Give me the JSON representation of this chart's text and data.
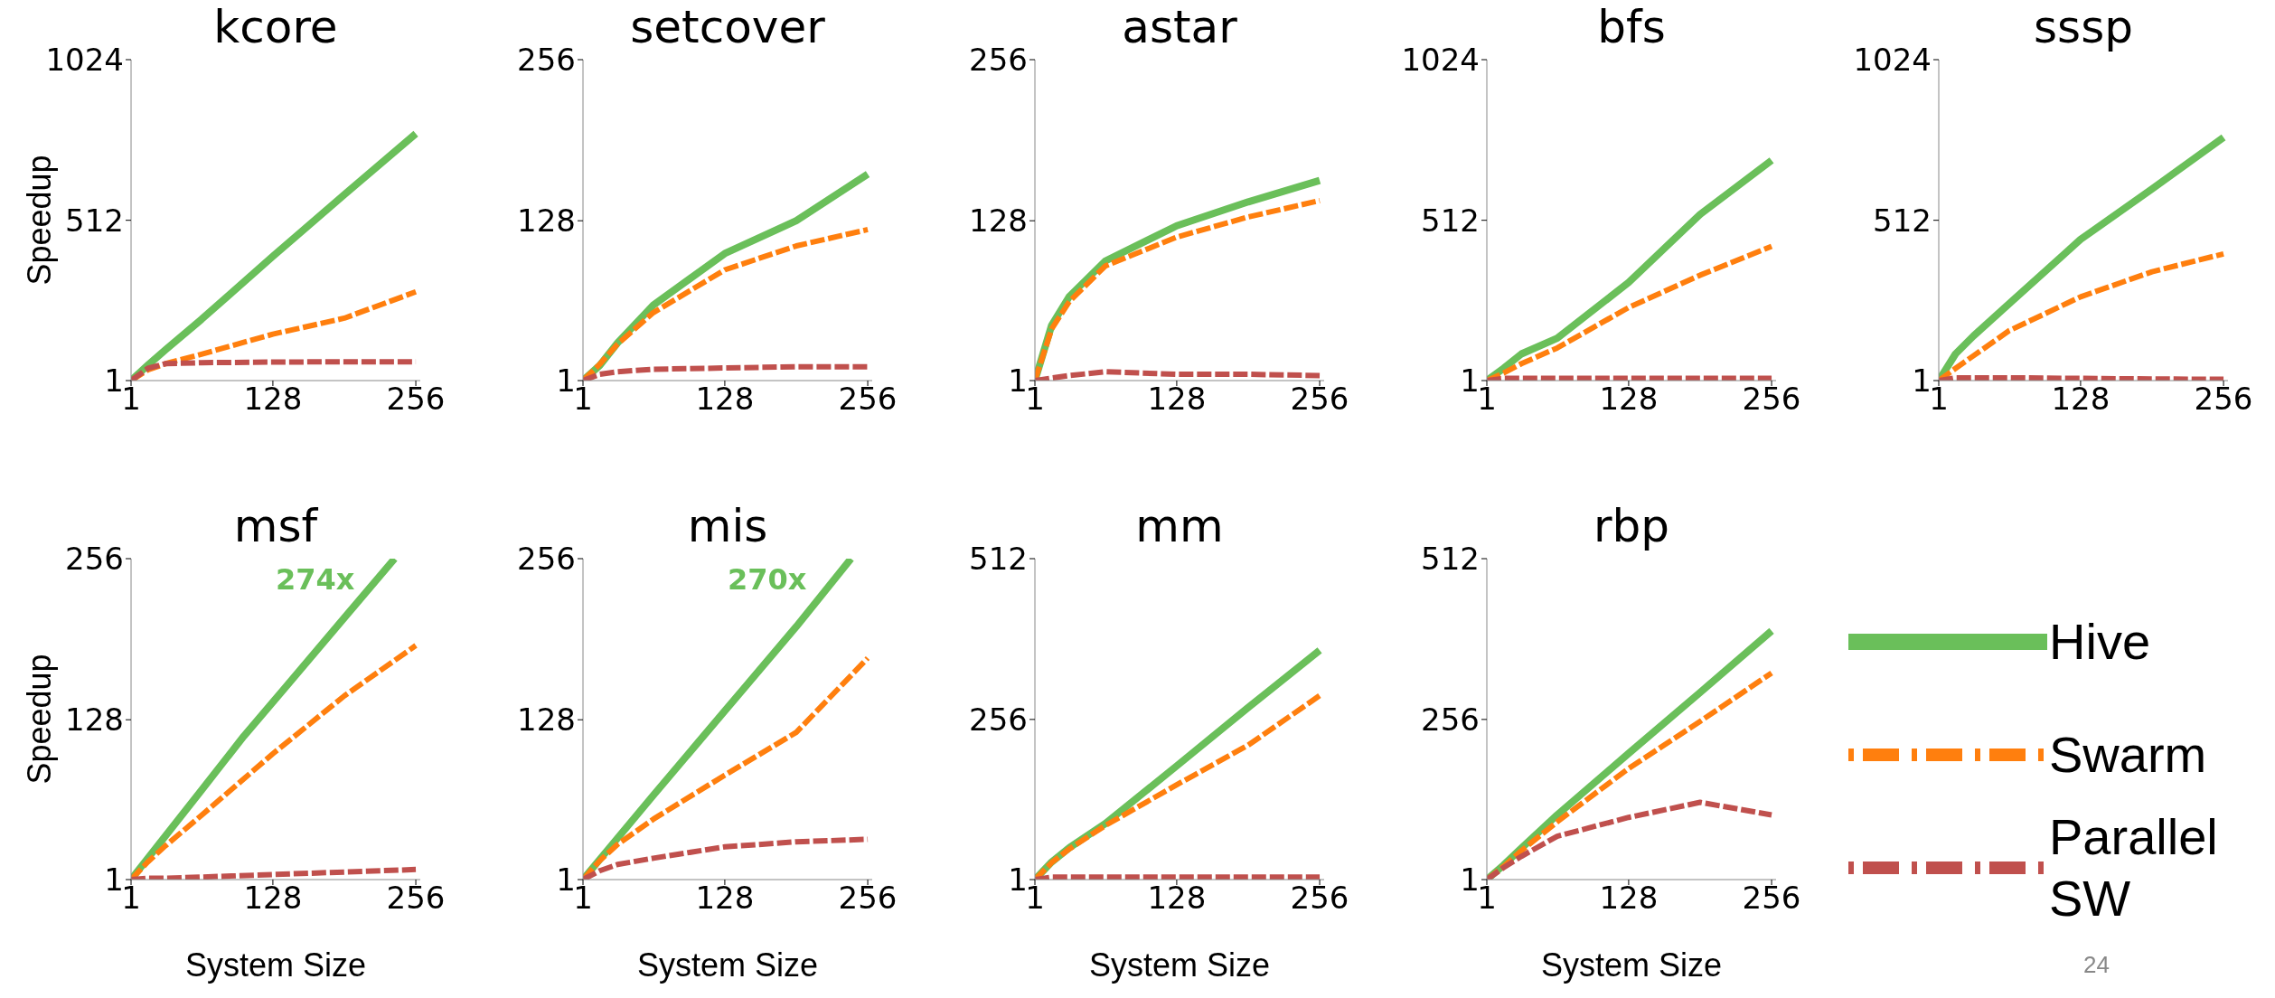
{
  "chart_data": [
    {
      "type": "line",
      "title": "kcore",
      "ylabel": "Speedup",
      "x": [
        1,
        16,
        32,
        64,
        128,
        192,
        256
      ],
      "xlim": [
        1,
        260
      ],
      "xticks": [
        1,
        128,
        256
      ],
      "ylim": [
        1,
        1024
      ],
      "yticks": [
        1,
        512,
        1024
      ],
      "series": [
        {
          "color": "#6abf5a",
          "line_style": "solid",
          "values": [
            1,
            50,
            100,
            196,
            397,
            594,
            788
          ]
        },
        {
          "color": "#ff7f0e",
          "line_style": "dashed",
          "values": [
            1,
            35,
            55,
            85,
            149,
            200,
            284
          ]
        },
        {
          "color": "#c0504d",
          "line_style": "dashed",
          "values": [
            1,
            40,
            55,
            58,
            60,
            61,
            61
          ]
        }
      ]
    },
    {
      "type": "line",
      "title": "setcover",
      "x": [
        1,
        16,
        32,
        64,
        128,
        192,
        256
      ],
      "xlim": [
        1,
        260
      ],
      "xticks": [
        1,
        128,
        256
      ],
      "ylim": [
        1,
        256
      ],
      "yticks": [
        1,
        128,
        256
      ],
      "series": [
        {
          "color": "#6abf5a",
          "line_style": "solid",
          "values": [
            1,
            13,
            31,
            61,
            102,
            128,
            165
          ]
        },
        {
          "color": "#ff7f0e",
          "line_style": "dashed",
          "values": [
            1,
            14,
            30,
            55,
            89,
            108,
            121
          ]
        },
        {
          "color": "#c0504d",
          "line_style": "dashed",
          "values": [
            1,
            6,
            8,
            10,
            11,
            12,
            12
          ]
        }
      ]
    },
    {
      "type": "line",
      "title": "astar",
      "x": [
        1,
        16,
        32,
        64,
        128,
        192,
        256
      ],
      "xlim": [
        1,
        260
      ],
      "xticks": [
        1,
        128,
        256
      ],
      "ylim": [
        1,
        256
      ],
      "yticks": [
        1,
        128,
        256
      ],
      "series": [
        {
          "color": "#6abf5a",
          "line_style": "solid",
          "values": [
            1,
            45,
            68,
            96,
            124,
            143,
            160
          ]
        },
        {
          "color": "#ff7f0e",
          "line_style": "dashed",
          "values": [
            1,
            42,
            64,
            92,
            115,
            131,
            144
          ]
        },
        {
          "color": "#c0504d",
          "line_style": "dashed",
          "values": [
            1,
            3,
            5,
            8,
            6,
            6,
            5
          ]
        }
      ]
    },
    {
      "type": "line",
      "title": "bfs",
      "x": [
        1,
        16,
        32,
        64,
        128,
        192,
        256
      ],
      "xlim": [
        1,
        260
      ],
      "xticks": [
        1,
        128,
        256
      ],
      "ylim": [
        1,
        1024
      ],
      "yticks": [
        1,
        512,
        1024
      ],
      "series": [
        {
          "color": "#6abf5a",
          "line_style": "solid",
          "values": [
            1,
            40,
            86,
            136,
            314,
            531,
            703
          ]
        },
        {
          "color": "#ff7f0e",
          "line_style": "dashed",
          "values": [
            1,
            25,
            55,
            105,
            234,
            337,
            429
          ]
        },
        {
          "color": "#c0504d",
          "line_style": "dashed",
          "values": [
            1,
            8,
            8,
            8,
            8,
            8,
            8
          ]
        }
      ]
    },
    {
      "type": "line",
      "title": "sssp",
      "x": [
        1,
        16,
        32,
        64,
        128,
        192,
        256
      ],
      "xlim": [
        1,
        260
      ],
      "xticks": [
        1,
        128,
        256
      ],
      "ylim": [
        1,
        1024
      ],
      "yticks": [
        1,
        512,
        1024
      ],
      "series": [
        {
          "color": "#6abf5a",
          "line_style": "solid",
          "values": [
            1,
            86,
            143,
            246,
            451,
            612,
            776
          ]
        },
        {
          "color": "#ff7f0e",
          "line_style": "dashed",
          "values": [
            1,
            40,
            80,
            160,
            268,
            348,
            405
          ]
        },
        {
          "color": "#c0504d",
          "line_style": "dashed",
          "values": [
            1,
            10,
            10,
            10,
            8,
            6,
            5
          ]
        }
      ]
    },
    {
      "type": "line",
      "title": "msf",
      "xlabel": "System Size",
      "ylabel": "Speedup",
      "annotations": [
        "274x"
      ],
      "x": [
        1,
        16,
        32,
        64,
        128,
        192,
        256
      ],
      "xlim": [
        1,
        260
      ],
      "xticks": [
        1,
        128,
        256
      ],
      "ylim": [
        1,
        256
      ],
      "yticks": [
        1,
        128,
        256
      ],
      "series": [
        {
          "color": "#6abf5a",
          "line_style": "solid",
          "x": [
            1,
            64,
            102,
            128,
            192,
            237
          ],
          "values": [
            1,
            72,
            115,
            142,
            209,
            256
          ]
        },
        {
          "color": "#ff7f0e",
          "line_style": "dashed",
          "values": [
            1,
            15,
            28,
            52,
            101,
            147,
            187
          ]
        },
        {
          "color": "#c0504d",
          "line_style": "dashed",
          "values": [
            1,
            2,
            2,
            3,
            5,
            7,
            9
          ]
        }
      ]
    },
    {
      "type": "line",
      "title": "mis",
      "xlabel": "System Size",
      "annotations": [
        "270x"
      ],
      "x": [
        1,
        16,
        32,
        64,
        128,
        192,
        256
      ],
      "xlim": [
        1,
        260
      ],
      "xticks": [
        1,
        128,
        256
      ],
      "ylim": [
        1,
        256
      ],
      "yticks": [
        1,
        128,
        256
      ],
      "series": [
        {
          "color": "#6abf5a",
          "line_style": "solid",
          "x": [
            1,
            64,
            128,
            192,
            241
          ],
          "values": [
            1,
            68,
            135,
            202,
            256
          ]
        },
        {
          "color": "#ff7f0e",
          "line_style": "dashed",
          "values": [
            1,
            16,
            29,
            49,
            84,
            118,
            177
          ]
        },
        {
          "color": "#c0504d",
          "line_style": "dashed",
          "values": [
            1,
            8,
            13,
            18,
            27,
            31,
            33
          ]
        }
      ]
    },
    {
      "type": "line",
      "title": "mm",
      "xlabel": "System Size",
      "x": [
        1,
        16,
        32,
        64,
        128,
        192,
        256
      ],
      "xlim": [
        1,
        260
      ],
      "xticks": [
        1,
        128,
        256
      ],
      "ylim": [
        1,
        512
      ],
      "yticks": [
        1,
        256,
        512
      ],
      "series": [
        {
          "color": "#6abf5a",
          "line_style": "solid",
          "values": [
            1,
            29,
            52,
            90,
            182,
            275,
            366
          ]
        },
        {
          "color": "#ff7f0e",
          "line_style": "dashed",
          "values": [
            1,
            28,
            50,
            87,
            152,
            215,
            294
          ]
        },
        {
          "color": "#c0504d",
          "line_style": "dashed",
          "values": [
            1,
            5,
            5,
            5,
            5,
            5,
            5
          ]
        }
      ]
    },
    {
      "type": "line",
      "title": "rbp",
      "xlabel": "System Size",
      "legend": "right",
      "annotations": [
        "24"
      ],
      "x": [
        1,
        16,
        32,
        64,
        128,
        192,
        256
      ],
      "xlim": [
        1,
        260
      ],
      "xticks": [
        1,
        128,
        256
      ],
      "ylim": [
        1,
        512
      ],
      "yticks": [
        1,
        256,
        512
      ],
      "series": [
        {
          "name": "Hive",
          "color": "#6abf5a",
          "line_style": "solid",
          "values": [
            1,
            24,
            51,
            104,
            202,
            299,
            397
          ]
        },
        {
          "name": "Swarm",
          "color": "#ff7f0e",
          "line_style": "dashed",
          "values": [
            1,
            22,
            47,
            93,
            178,
            253,
            330
          ]
        },
        {
          "name": "Parallel SW",
          "color": "#c0504d",
          "line_style": "dashed",
          "values": [
            1,
            20,
            38,
            70,
            100,
            124,
            104
          ]
        }
      ]
    }
  ]
}
